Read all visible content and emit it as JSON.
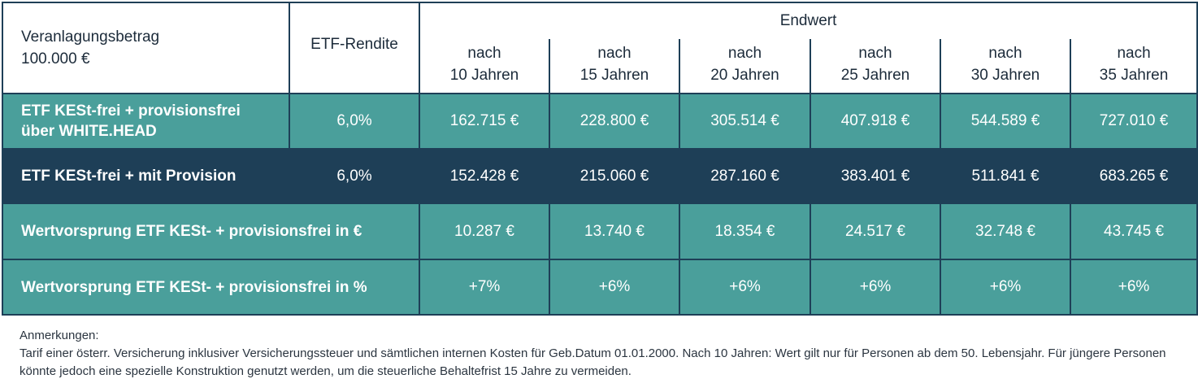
{
  "header": {
    "investment_label": "Veranlagungsbetrag",
    "investment_amount": "100.000 €",
    "rendite_label": "ETF-Rendite",
    "endwert_label": "Endwert",
    "periods": [
      {
        "line1": "nach",
        "line2": "10 Jahren"
      },
      {
        "line1": "nach",
        "line2": "15 Jahren"
      },
      {
        "line1": "nach",
        "line2": "20 Jahren"
      },
      {
        "line1": "nach",
        "line2": "25 Jahren"
      },
      {
        "line1": "nach",
        "line2": "30 Jahren"
      },
      {
        "line1": "nach",
        "line2": "35 Jahren"
      }
    ]
  },
  "rows": [
    {
      "label_line1": "ETF KESt-frei + provisionsfrei",
      "label_line2": "über WHITE.HEAD",
      "rendite": "6,0%",
      "values": [
        "162.715 €",
        "228.800 €",
        "305.514 €",
        "407.918 €",
        "544.589 €",
        "727.010 €"
      ]
    },
    {
      "label": "ETF KESt-frei + mit Provision",
      "rendite": "6,0%",
      "values": [
        "152.428 €",
        "215.060 €",
        "287.160 €",
        "383.401 €",
        "511.841 €",
        "683.265 €"
      ]
    },
    {
      "label": "Wertvorsprung ETF KESt- + provisionsfrei in €",
      "values": [
        "10.287 €",
        "13.740 €",
        "18.354 €",
        "24.517 €",
        "32.748 €",
        "43.745 €"
      ]
    },
    {
      "label": "Wertvorsprung ETF KESt- + provisionsfrei in %",
      "values": [
        "+7%",
        "+6%",
        "+6%",
        "+6%",
        "+6%",
        "+6%"
      ]
    }
  ],
  "notes": {
    "title": "Anmerkungen:",
    "text": "Tarif einer österr. Versicherung inklusiver Versicherungssteuer und sämtlichen internen Kosten für Geb.Datum 01.01.2000. Nach 10 Jahren: Wert gilt nur für Personen ab dem 50. Lebensjahr. Für jüngere Personen könnte jedoch eine spezielle Konstruktion genutzt werden, um die steuerliche Behaltefrist 15 Jahre zu vermeiden."
  },
  "colors": {
    "teal": "#4a9f9b",
    "navy": "#1e3f57",
    "header_bg": "#ffffff"
  }
}
